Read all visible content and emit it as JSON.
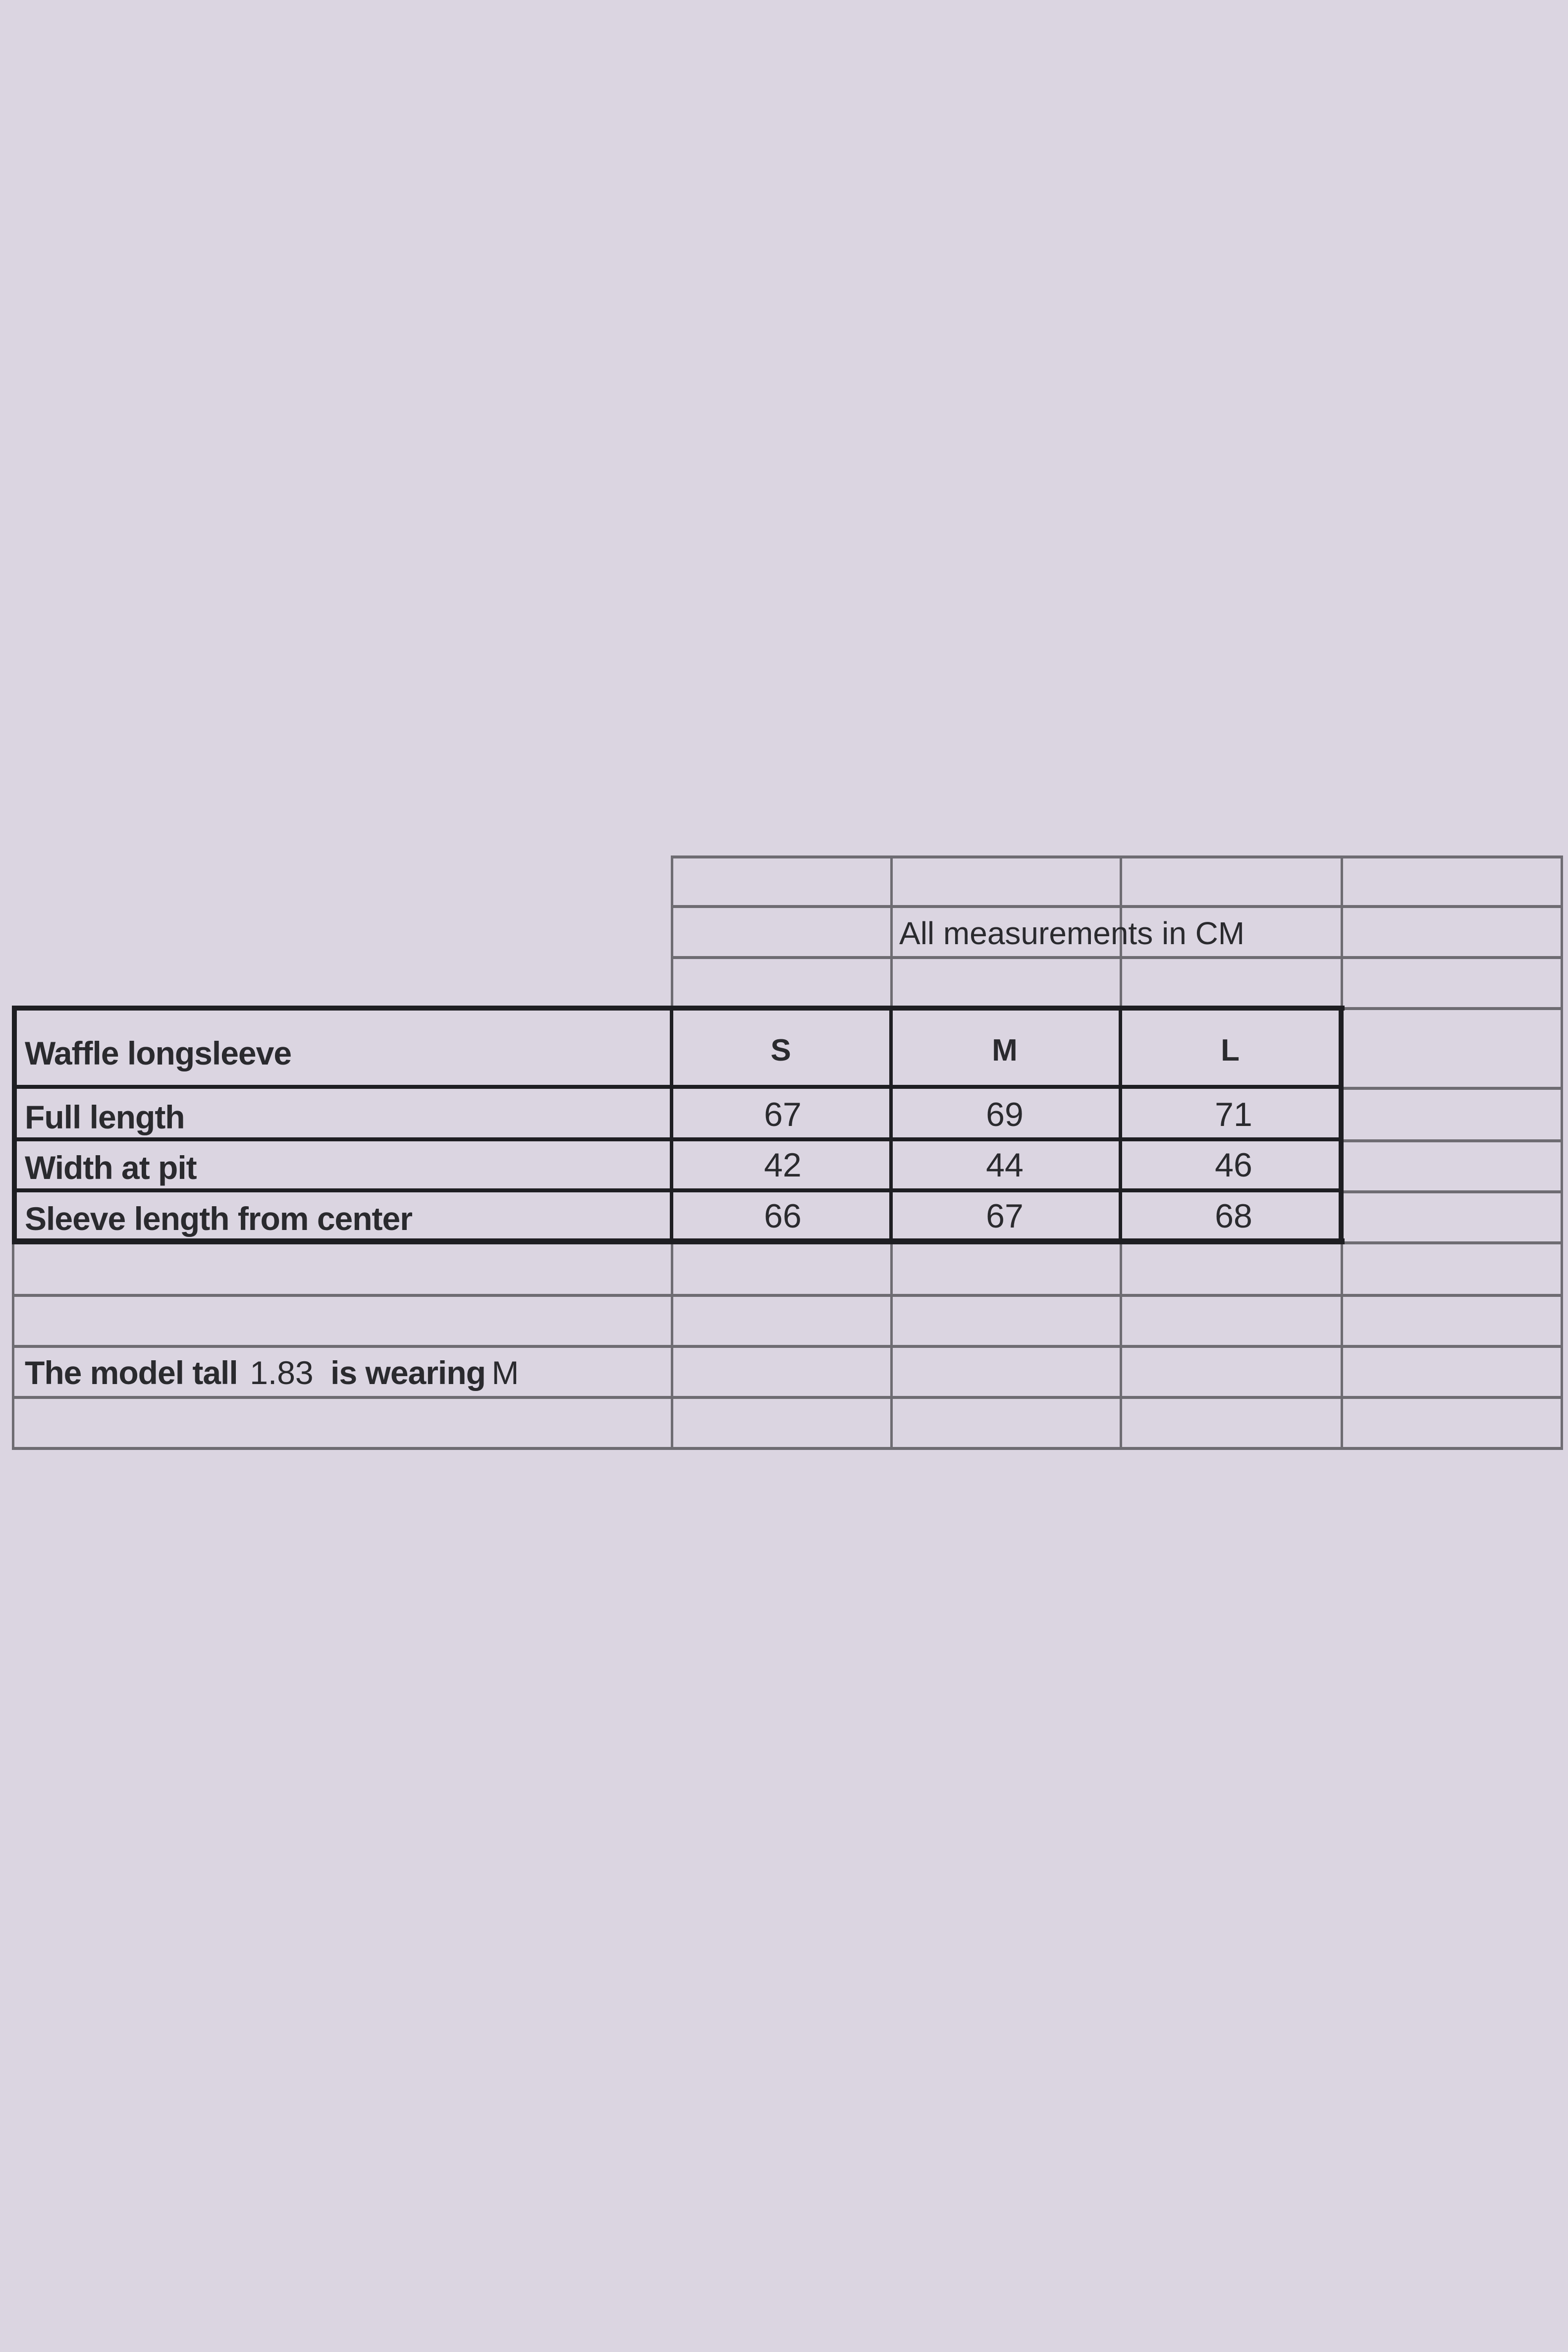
{
  "size_chart": {
    "units_note": "All measurements in CM",
    "product_name": "Waffle longsleeve",
    "sizes": [
      "S",
      "M",
      "L"
    ],
    "rows": [
      {
        "label": "Full length",
        "values": [
          "67",
          "69",
          "71"
        ]
      },
      {
        "label": "Width at pit",
        "values": [
          "42",
          "44",
          "46"
        ]
      },
      {
        "label": "Sleeve length from center",
        "values": [
          "66",
          "67",
          "68"
        ]
      }
    ],
    "model_note": {
      "prefix": "The model tall",
      "height": "1.83",
      "middle": "is wearing",
      "size": "M"
    }
  },
  "colors": {
    "background": "#dbd5e1",
    "grid": "#6e6c72",
    "border": "#1e1e22"
  }
}
